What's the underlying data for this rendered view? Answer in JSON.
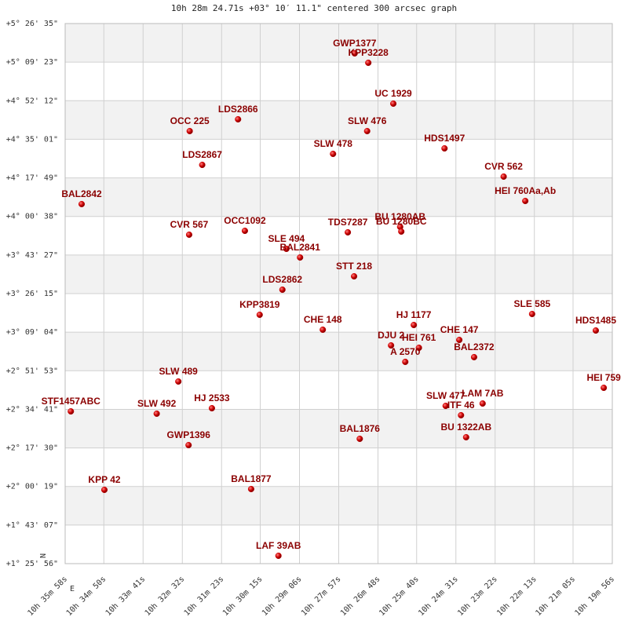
{
  "chart_data": {
    "type": "scatter",
    "title": "10h 28m 24.71s +03° 10′ 11.1\" centered 300 arcsec graph",
    "compass": {
      "north": "N",
      "east": "E"
    },
    "color": "#cc0000",
    "grid": true,
    "xlim": [
      2158,
      1196
    ],
    "ylim": [
      5156,
      19595
    ],
    "xticks": [
      {
        "value": 2158,
        "label": "10h 35m 58s"
      },
      {
        "value": 2090,
        "label": "10h 34m 50s"
      },
      {
        "value": 2021,
        "label": "10h 33m 41s"
      },
      {
        "value": 1952,
        "label": "10h 32m 32s"
      },
      {
        "value": 1883,
        "label": "10h 31m 23s"
      },
      {
        "value": 1815,
        "label": "10h 30m 15s"
      },
      {
        "value": 1746,
        "label": "10h 29m 06s"
      },
      {
        "value": 1677,
        "label": "10h 27m 57s"
      },
      {
        "value": 1608,
        "label": "10h 26m 48s"
      },
      {
        "value": 1540,
        "label": "10h 25m 40s"
      },
      {
        "value": 1471,
        "label": "10h 24m 31s"
      },
      {
        "value": 1402,
        "label": "10h 23m 22s"
      },
      {
        "value": 1333,
        "label": "10h 22m 13s"
      },
      {
        "value": 1265,
        "label": "10h 21m 05s"
      },
      {
        "value": 1196,
        "label": "10h 19m 56s"
      }
    ],
    "yticks": [
      {
        "value": 19595,
        "label": "+5° 26' 35\""
      },
      {
        "value": 18563,
        "label": "+5° 09' 23\""
      },
      {
        "value": 17532,
        "label": "+4° 52' 12\""
      },
      {
        "value": 16501,
        "label": "+4° 35' 01\""
      },
      {
        "value": 15469,
        "label": "+4° 17' 49\""
      },
      {
        "value": 14438,
        "label": "+4° 00' 38\""
      },
      {
        "value": 13407,
        "label": "+3° 43' 27\""
      },
      {
        "value": 12375,
        "label": "+3° 26' 15\""
      },
      {
        "value": 11344,
        "label": "+3° 09' 04\""
      },
      {
        "value": 10313,
        "label": "+2° 51' 53\""
      },
      {
        "value": 9281,
        "label": "+2° 34' 41\""
      },
      {
        "value": 8250,
        "label": "+2° 17' 30\""
      },
      {
        "value": 7219,
        "label": "+2° 00' 19\""
      },
      {
        "value": 6187,
        "label": "+1° 43' 07\""
      },
      {
        "value": 5156,
        "label": "+1° 25' 56\""
      }
    ],
    "labels": [
      "GWP1377",
      "KPP3228",
      "UC 1929",
      "LDS2866",
      "OCC 225",
      "SLW 476",
      "HDS1497",
      "SLW 478",
      "LDS2867",
      "CVR 562",
      "HEI 760Aa,Ab",
      "BAL2842",
      "BU 1280AB",
      "BU 1280BC",
      "OCC1092",
      "TDS7287",
      "CVR 567",
      "SLE 494",
      "BAL2841",
      "STT 218",
      "LDS2862",
      "KPP3819",
      "SLE 585",
      "HJ 1177",
      "CHE 148",
      "HDS1485",
      "CHE 147",
      "DJU 2",
      "HEI 761",
      "BAL2372",
      "A 2570",
      "SLW 489",
      "HEI 759",
      "LAM 7AB",
      "SLW 477",
      "ITF 46",
      "HJ 2533",
      "STF1457ABC",
      "SLW 492",
      "BU 1322AB",
      "BAL1876",
      "GWP1396",
      "KPP 42",
      "BAL1877",
      "LAF 39AB"
    ],
    "x": [
      1649,
      1625,
      1581,
      1854,
      1939,
      1627,
      1491,
      1687,
      1917,
      1387,
      1349,
      2129,
      1569,
      1567,
      1842,
      1661,
      1940,
      1769,
      1745,
      1650,
      1776,
      1816,
      1337,
      1545,
      1705,
      1225,
      1465,
      1585,
      1536,
      1439,
      1560,
      1959,
      1211,
      1424,
      1489,
      1462,
      1900,
      2148,
      1997,
      1453,
      1640,
      1941,
      2089,
      1831,
      1783
    ],
    "values": [
      18798,
      18546,
      17454,
      17035,
      16720,
      16720,
      16258,
      16111,
      15817,
      15503,
      14852,
      14768,
      14159,
      14034,
      14054,
      14013,
      13950,
      13572,
      13341,
      12837,
      12480,
      11809,
      11830,
      11536,
      11410,
      11389,
      11137,
      10990,
      10927,
      10676,
      10550,
      10025,
      9857,
      9437,
      9374,
      9123,
      9311,
      9227,
      9165,
      8535,
      8493,
      8325,
      7129,
      7150,
      5366
    ]
  }
}
